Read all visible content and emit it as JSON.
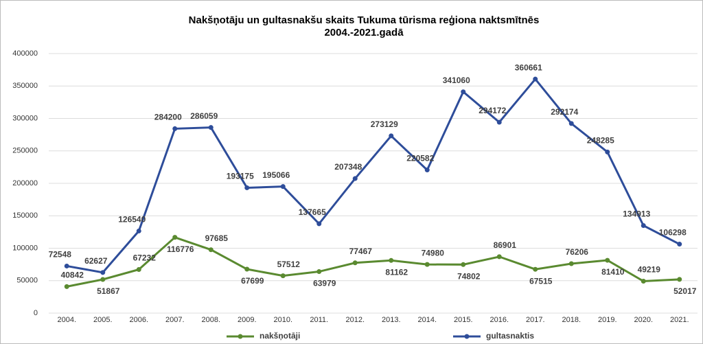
{
  "chart_data": {
    "type": "line",
    "title": [
      "Nakšņotāju un gultasnakšu skaits Tukuma tūrisma reģiona naktsmītnēs",
      "2004.-2021.gadā"
    ],
    "categories": [
      "2004.",
      "2005.",
      "2006.",
      "2007.",
      "2008.",
      "2009.",
      "2010.",
      "2011.",
      "2012.",
      "2013.",
      "2014.",
      "2015.",
      "2016.",
      "2017.",
      "2018.",
      "2019.",
      "2020.",
      "2021."
    ],
    "series": [
      {
        "name": "nakšņotāji",
        "color": "#5a8a30",
        "values": [
          40842,
          51867,
          67232,
          116776,
          97685,
          67699,
          57512,
          63979,
          77467,
          81162,
          74980,
          74802,
          86901,
          67515,
          76206,
          81410,
          49219,
          52017
        ]
      },
      {
        "name": "gultasnaktis",
        "color": "#2e4d9a",
        "values": [
          72548,
          62627,
          126540,
          284200,
          286059,
          193175,
          195066,
          137665,
          207348,
          273129,
          220582,
          341060,
          294172,
          360661,
          292174,
          248285,
          134913,
          106298
        ]
      }
    ],
    "ylim": [
      0,
      400000
    ],
    "yticks": [
      0,
      50000,
      100000,
      150000,
      200000,
      250000,
      300000,
      350000,
      400000
    ],
    "grid": true,
    "legend": "bottom"
  }
}
